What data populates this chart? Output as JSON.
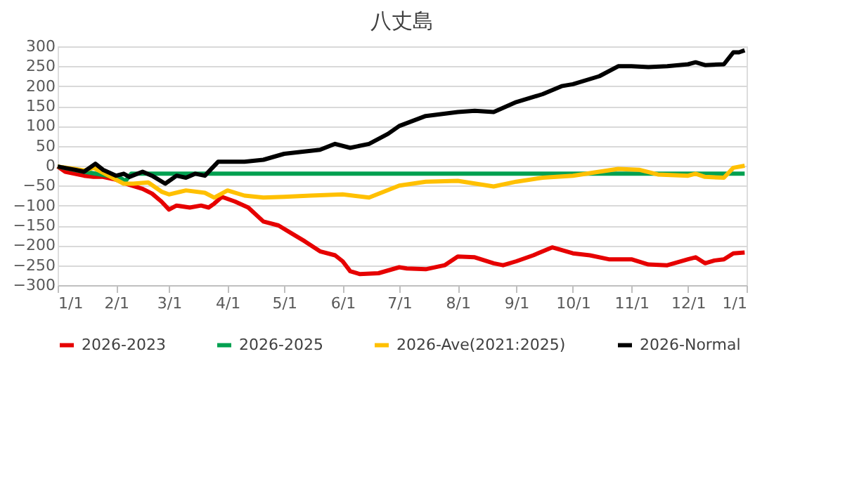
{
  "chart_data": {
    "type": "line",
    "title": "八丈島",
    "xlim": [
      "2026-01-01",
      "2027-01-01"
    ],
    "xticks": [
      {
        "value": "2026-01-01",
        "label": "1/1"
      },
      {
        "value": "2026-02-01",
        "label": "2/1"
      },
      {
        "value": "2026-03-01",
        "label": "3/1"
      },
      {
        "value": "2026-04-01",
        "label": "4/1"
      },
      {
        "value": "2026-05-01",
        "label": "5/1"
      },
      {
        "value": "2026-06-01",
        "label": "6/1"
      },
      {
        "value": "2026-07-01",
        "label": "7/1"
      },
      {
        "value": "2026-08-01",
        "label": "8/1"
      },
      {
        "value": "2026-09-01",
        "label": "9/1"
      },
      {
        "value": "2026-10-01",
        "label": "10/1"
      },
      {
        "value": "2026-11-01",
        "label": "11/1"
      },
      {
        "value": "2026-12-01",
        "label": "12/1"
      },
      {
        "value": "2027-01-01",
        "label": "1/1"
      }
    ],
    "ylim": [
      -300,
      300
    ],
    "yticks": [
      -300,
      -250,
      -200,
      -150,
      -100,
      -50,
      0,
      50,
      100,
      150,
      200,
      250,
      300
    ],
    "grid": "y",
    "legend": "bottom",
    "marker": "none",
    "line_style": "solid",
    "series": [
      {
        "name": "2026-2023",
        "color": "#e60000",
        "x": [
          "2026-01-01",
          "2026-01-05",
          "2026-01-10",
          "2026-01-15",
          "2026-01-20",
          "2026-01-25",
          "2026-02-01",
          "2026-02-08",
          "2026-02-15",
          "2026-02-20",
          "2026-02-25",
          "2026-03-01",
          "2026-03-05",
          "2026-03-12",
          "2026-03-18",
          "2026-03-22",
          "2026-03-25",
          "2026-03-29",
          "2026-04-05",
          "2026-04-12",
          "2026-04-20",
          "2026-04-28",
          "2026-05-05",
          "2026-05-12",
          "2026-05-20",
          "2026-05-28",
          "2026-06-01",
          "2026-06-05",
          "2026-06-10",
          "2026-06-20",
          "2026-07-01",
          "2026-07-05",
          "2026-07-15",
          "2026-07-25",
          "2026-08-01",
          "2026-08-10",
          "2026-08-20",
          "2026-08-25",
          "2026-09-01",
          "2026-09-10",
          "2026-09-20",
          "2026-10-01",
          "2026-10-10",
          "2026-10-20",
          "2026-11-01",
          "2026-11-10",
          "2026-11-20",
          "2026-12-01",
          "2026-12-05",
          "2026-12-10",
          "2026-12-15",
          "2026-12-20",
          "2026-12-25",
          "2026-12-31"
        ],
        "values": [
          -2,
          -15,
          -20,
          -25,
          -28,
          -28,
          -35,
          -48,
          -58,
          -70,
          -90,
          -110,
          -100,
          -105,
          -100,
          -105,
          -95,
          -78,
          -90,
          -105,
          -140,
          -150,
          -170,
          -190,
          -215,
          -225,
          -240,
          -265,
          -272,
          -270,
          -255,
          -258,
          -260,
          -250,
          -228,
          -230,
          -245,
          -250,
          -240,
          -225,
          -205,
          -220,
          -225,
          -235,
          -235,
          -248,
          -250,
          -235,
          -230,
          -245,
          -238,
          -235,
          -220,
          -218
        ]
      },
      {
        "name": "2026-2025",
        "color": "#00a050",
        "x": [
          "2026-01-01",
          "2026-01-15",
          "2026-02-03",
          "2026-02-06",
          "2026-02-09",
          "2026-12-31"
        ],
        "values": [
          -2,
          -15,
          -30,
          -38,
          -20,
          -20
        ]
      },
      {
        "name": "2026-Ave(2021:2025)",
        "color": "#ffc000",
        "x": [
          "2026-01-01",
          "2026-01-10",
          "2026-01-15",
          "2026-01-20",
          "2026-02-01",
          "2026-02-05",
          "2026-02-10",
          "2026-02-18",
          "2026-02-25",
          "2026-03-01",
          "2026-03-10",
          "2026-03-20",
          "2026-03-25",
          "2026-04-01",
          "2026-04-10",
          "2026-04-20",
          "2026-05-01",
          "2026-05-15",
          "2026-06-01",
          "2026-06-15",
          "2026-07-01",
          "2026-07-15",
          "2026-08-01",
          "2026-08-20",
          "2026-09-01",
          "2026-09-15",
          "2026-10-01",
          "2026-10-15",
          "2026-10-25",
          "2026-11-05",
          "2026-11-15",
          "2026-12-01",
          "2026-12-05",
          "2026-12-10",
          "2026-12-20",
          "2026-12-25",
          "2026-12-31"
        ],
        "values": [
          -2,
          -8,
          -12,
          -5,
          -35,
          -45,
          -45,
          -42,
          -65,
          -72,
          -62,
          -68,
          -80,
          -62,
          -75,
          -80,
          -78,
          -75,
          -72,
          -80,
          -50,
          -40,
          -38,
          -52,
          -40,
          -30,
          -25,
          -15,
          -8,
          -10,
          -22,
          -25,
          -20,
          -28,
          -30,
          -5,
          0
        ]
      },
      {
        "name": "2026-Normal",
        "color": "#000000",
        "x": [
          "2026-01-01",
          "2026-01-10",
          "2026-01-15",
          "2026-01-21",
          "2026-01-25",
          "2026-02-01",
          "2026-02-05",
          "2026-02-08",
          "2026-02-15",
          "2026-02-20",
          "2026-02-27",
          "2026-03-05",
          "2026-03-10",
          "2026-03-15",
          "2026-03-20",
          "2026-03-27",
          "2026-04-01",
          "2026-04-10",
          "2026-04-20",
          "2026-05-01",
          "2026-05-10",
          "2026-05-20",
          "2026-05-28",
          "2026-06-05",
          "2026-06-15",
          "2026-06-25",
          "2026-07-01",
          "2026-07-15",
          "2026-08-01",
          "2026-08-10",
          "2026-08-20",
          "2026-09-01",
          "2026-09-15",
          "2026-09-25",
          "2026-10-01",
          "2026-10-15",
          "2026-10-25",
          "2026-11-01",
          "2026-11-10",
          "2026-11-20",
          "2026-12-01",
          "2026-12-05",
          "2026-12-10",
          "2026-12-20",
          "2026-12-25",
          "2026-12-28",
          "2026-12-31"
        ],
        "values": [
          -2,
          -10,
          -15,
          5,
          -10,
          -25,
          -20,
          -28,
          -15,
          -25,
          -45,
          -25,
          -30,
          -20,
          -25,
          10,
          10,
          10,
          15,
          30,
          35,
          40,
          55,
          45,
          55,
          80,
          100,
          125,
          135,
          138,
          135,
          160,
          180,
          200,
          205,
          225,
          250,
          250,
          248,
          250,
          255,
          260,
          253,
          255,
          285,
          285,
          290
        ]
      }
    ]
  }
}
